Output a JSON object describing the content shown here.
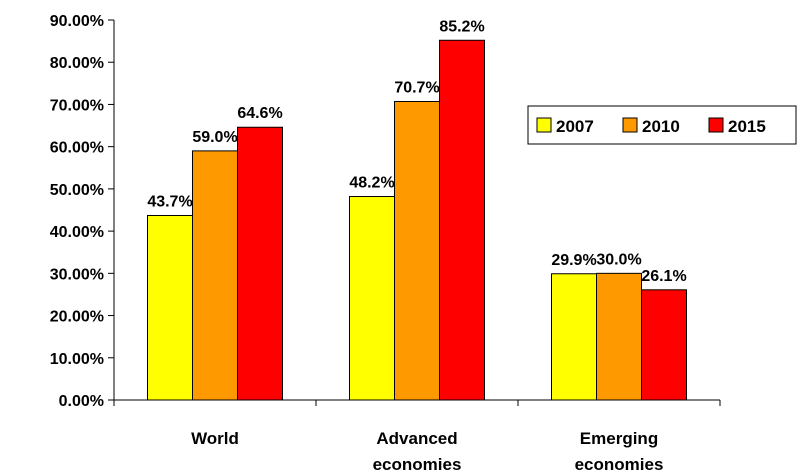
{
  "chart_data": {
    "type": "bar",
    "title": "",
    "xlabel": "",
    "ylabel": "",
    "categories": [
      [
        "World"
      ],
      [
        "Advanced",
        "economies"
      ],
      [
        "Emerging",
        "economies"
      ]
    ],
    "series": [
      {
        "name": "2007",
        "color": "#ffff00",
        "values": [
          43.7,
          48.2,
          29.9
        ],
        "labels": [
          "43.7%",
          "48.2%",
          "29.9%"
        ]
      },
      {
        "name": "2010",
        "color": "#ff9900",
        "values": [
          59.0,
          70.7,
          30.0
        ],
        "labels": [
          "59.0%",
          "70.7%",
          "30.0%"
        ]
      },
      {
        "name": "2015",
        "color": "#ff0000",
        "values": [
          64.6,
          85.2,
          26.1
        ],
        "labels": [
          "64.6%",
          "85.2%",
          "26.1%"
        ]
      }
    ],
    "ylim": [
      0,
      90
    ],
    "yticks": [
      0,
      10,
      20,
      30,
      40,
      50,
      60,
      70,
      80,
      90
    ],
    "ytick_labels": [
      "0.00%",
      "10.00%",
      "20.00%",
      "30.00%",
      "40.00%",
      "50.00%",
      "60.00%",
      "70.00%",
      "80.00%",
      "90.00%"
    ],
    "grid": false,
    "legend": {
      "position": "right",
      "entries": [
        "2007",
        "2010",
        "2015"
      ]
    }
  }
}
